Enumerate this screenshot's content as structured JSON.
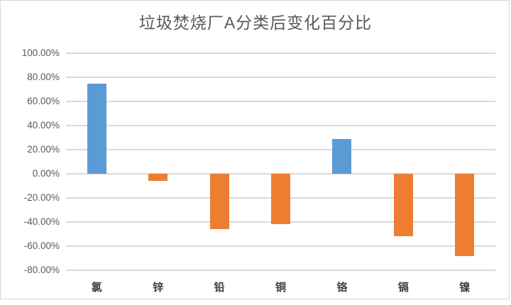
{
  "chart_data": {
    "type": "bar",
    "title": "垃圾焚烧厂A分类后变化百分比",
    "categories": [
      "氯",
      "锌",
      "铅",
      "铜",
      "铬",
      "镉",
      "镍"
    ],
    "values": [
      75,
      -6,
      -46,
      -42,
      29,
      -52,
      -68
    ],
    "value_unit": "percent",
    "ylim": [
      -80,
      100
    ],
    "yticks": [
      100,
      80,
      60,
      40,
      20,
      0,
      -20,
      -40,
      -60,
      -80
    ],
    "ytick_labels": [
      "100.00%",
      "80.00%",
      "60.00%",
      "40.00%",
      "20.00%",
      "0.00%",
      "-20.00%",
      "-40.00%",
      "-60.00%",
      "-80.00%"
    ],
    "xlabel": "",
    "ylabel": "",
    "grid": true,
    "legend": "none",
    "colors": {
      "positive_bar": "#5B9BD5",
      "negative_bar": "#ED7D31",
      "gridline": "#D9D9D9",
      "title_text": "#595959",
      "ytick_text": "#595959",
      "xtick_text": "#404040",
      "frame_border": "#D9D9D9"
    }
  }
}
